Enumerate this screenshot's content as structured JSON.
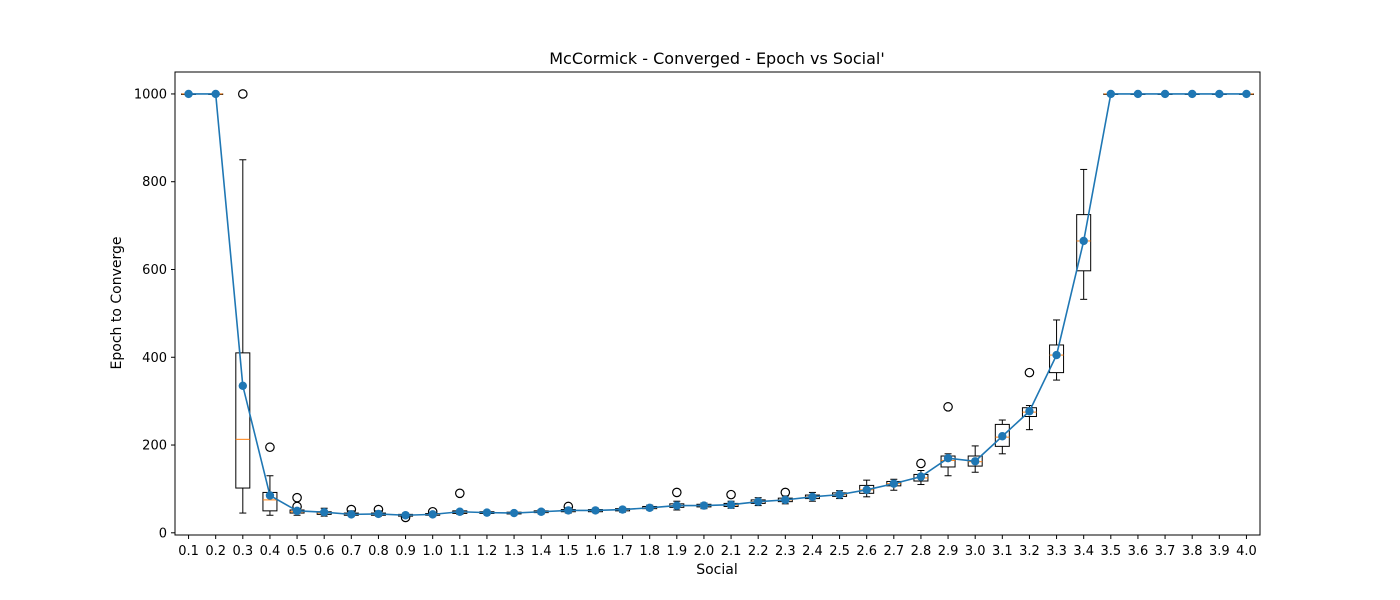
{
  "chart_data": {
    "type": "box",
    "title": "McCormick - Converged - Epoch vs Social'",
    "xlabel": "Social",
    "ylabel": "Epoch to Converge",
    "ylim": [
      -5,
      1050
    ],
    "yticks": [
      0,
      200,
      400,
      600,
      800,
      1000
    ],
    "grid": false,
    "categories": [
      "0.1",
      "0.2",
      "0.3",
      "0.4",
      "0.5",
      "0.6",
      "0.7",
      "0.8",
      "0.9",
      "1.0",
      "1.1",
      "1.2",
      "1.3",
      "1.4",
      "1.5",
      "1.6",
      "1.7",
      "1.8",
      "1.9",
      "2.0",
      "2.1",
      "2.2",
      "2.3",
      "2.4",
      "2.5",
      "2.6",
      "2.7",
      "2.8",
      "2.9",
      "3.0",
      "3.1",
      "3.2",
      "3.3",
      "3.4",
      "3.5",
      "3.6",
      "3.7",
      "3.8",
      "3.9",
      "4.0"
    ],
    "means": [
      1000,
      1000,
      335,
      85,
      50,
      47,
      42,
      43,
      40,
      42,
      48,
      46,
      45,
      48,
      51,
      51,
      53,
      57,
      62,
      62,
      64,
      71,
      75,
      82,
      87,
      98,
      112,
      128,
      170,
      163,
      220,
      277,
      405,
      665,
      1000,
      1000,
      1000,
      1000,
      1000,
      1000
    ],
    "boxes": [
      {
        "q1": 1000,
        "median": 1000,
        "q3": 1000,
        "wlo": 1000,
        "whi": 1000,
        "fliers": []
      },
      {
        "q1": 1000,
        "median": 1000,
        "q3": 1000,
        "wlo": 1000,
        "whi": 1000,
        "fliers": []
      },
      {
        "q1": 102,
        "median": 213,
        "q3": 410,
        "wlo": 45,
        "whi": 850,
        "fliers": [
          1000
        ]
      },
      {
        "q1": 50,
        "median": 75,
        "q3": 92,
        "wlo": 40,
        "whi": 130,
        "fliers": [
          195
        ]
      },
      {
        "q1": 45,
        "median": 48,
        "q3": 52,
        "wlo": 40,
        "whi": 55,
        "fliers": [
          60,
          80
        ]
      },
      {
        "q1": 42,
        "median": 45,
        "q3": 48,
        "wlo": 38,
        "whi": 56,
        "fliers": []
      },
      {
        "q1": 40,
        "median": 42,
        "q3": 45,
        "wlo": 38,
        "whi": 50,
        "fliers": [
          53
        ]
      },
      {
        "q1": 40,
        "median": 42,
        "q3": 45,
        "wlo": 38,
        "whi": 50,
        "fliers": [
          53
        ]
      },
      {
        "q1": 38,
        "median": 40,
        "q3": 42,
        "wlo": 35,
        "whi": 45,
        "fliers": [
          35
        ]
      },
      {
        "q1": 40,
        "median": 42,
        "q3": 44,
        "wlo": 38,
        "whi": 46,
        "fliers": [
          48
        ]
      },
      {
        "q1": 44,
        "median": 46,
        "q3": 50,
        "wlo": 42,
        "whi": 52,
        "fliers": [
          90
        ]
      },
      {
        "q1": 44,
        "median": 46,
        "q3": 48,
        "wlo": 42,
        "whi": 50,
        "fliers": []
      },
      {
        "q1": 43,
        "median": 45,
        "q3": 47,
        "wlo": 41,
        "whi": 49,
        "fliers": []
      },
      {
        "q1": 46,
        "median": 48,
        "q3": 50,
        "wlo": 43,
        "whi": 53,
        "fliers": []
      },
      {
        "q1": 48,
        "median": 50,
        "q3": 53,
        "wlo": 45,
        "whi": 57,
        "fliers": [
          60
        ]
      },
      {
        "q1": 48,
        "median": 51,
        "q3": 53,
        "wlo": 46,
        "whi": 56,
        "fliers": []
      },
      {
        "q1": 50,
        "median": 53,
        "q3": 55,
        "wlo": 47,
        "whi": 58,
        "fliers": []
      },
      {
        "q1": 55,
        "median": 57,
        "q3": 60,
        "wlo": 52,
        "whi": 63,
        "fliers": []
      },
      {
        "q1": 58,
        "median": 62,
        "q3": 66,
        "wlo": 52,
        "whi": 72,
        "fliers": [
          92
        ]
      },
      {
        "q1": 59,
        "median": 62,
        "q3": 65,
        "wlo": 55,
        "whi": 68,
        "fliers": []
      },
      {
        "q1": 60,
        "median": 63,
        "q3": 67,
        "wlo": 56,
        "whi": 72,
        "fliers": [
          87
        ]
      },
      {
        "q1": 67,
        "median": 71,
        "q3": 75,
        "wlo": 62,
        "whi": 80,
        "fliers": []
      },
      {
        "q1": 71,
        "median": 75,
        "q3": 79,
        "wlo": 66,
        "whi": 84,
        "fliers": [
          92
        ]
      },
      {
        "q1": 78,
        "median": 82,
        "q3": 86,
        "wlo": 72,
        "whi": 92,
        "fliers": []
      },
      {
        "q1": 83,
        "median": 87,
        "q3": 91,
        "wlo": 78,
        "whi": 96,
        "fliers": []
      },
      {
        "q1": 90,
        "median": 98,
        "q3": 108,
        "wlo": 82,
        "whi": 120,
        "fliers": []
      },
      {
        "q1": 107,
        "median": 112,
        "q3": 117,
        "wlo": 97,
        "whi": 122,
        "fliers": []
      },
      {
        "q1": 118,
        "median": 125,
        "q3": 133,
        "wlo": 110,
        "whi": 142,
        "fliers": [
          158
        ]
      },
      {
        "q1": 150,
        "median": 165,
        "q3": 175,
        "wlo": 130,
        "whi": 180,
        "fliers": [
          287
        ]
      },
      {
        "q1": 152,
        "median": 162,
        "q3": 175,
        "wlo": 138,
        "whi": 198,
        "fliers": []
      },
      {
        "q1": 197,
        "median": 218,
        "q3": 247,
        "wlo": 180,
        "whi": 257,
        "fliers": []
      },
      {
        "q1": 265,
        "median": 275,
        "q3": 285,
        "wlo": 235,
        "whi": 290,
        "fliers": [
          365
        ]
      },
      {
        "q1": 365,
        "median": 405,
        "q3": 428,
        "wlo": 348,
        "whi": 485,
        "fliers": []
      },
      {
        "q1": 597,
        "median": 665,
        "q3": 725,
        "wlo": 532,
        "whi": 828,
        "fliers": []
      },
      {
        "q1": 1000,
        "median": 1000,
        "q3": 1000,
        "wlo": 1000,
        "whi": 1000,
        "fliers": []
      },
      {
        "q1": 1000,
        "median": 1000,
        "q3": 1000,
        "wlo": 1000,
        "whi": 1000,
        "fliers": []
      },
      {
        "q1": 1000,
        "median": 1000,
        "q3": 1000,
        "wlo": 1000,
        "whi": 1000,
        "fliers": []
      },
      {
        "q1": 1000,
        "median": 1000,
        "q3": 1000,
        "wlo": 1000,
        "whi": 1000,
        "fliers": []
      },
      {
        "q1": 1000,
        "median": 1000,
        "q3": 1000,
        "wlo": 1000,
        "whi": 1000,
        "fliers": []
      },
      {
        "q1": 1000,
        "median": 1000,
        "q3": 1000,
        "wlo": 1000,
        "whi": 1000,
        "fliers": []
      }
    ],
    "colors": {
      "box": "#000000",
      "median": "#ff7f0e",
      "mean_line": "#1f77b4",
      "mean_marker": "#1f77b4",
      "flier": "#000000"
    }
  }
}
